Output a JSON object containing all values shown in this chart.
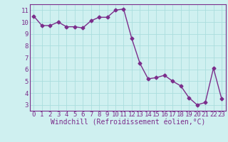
{
  "x": [
    0,
    1,
    2,
    3,
    4,
    5,
    6,
    7,
    8,
    9,
    10,
    11,
    12,
    13,
    14,
    15,
    16,
    17,
    18,
    19,
    20,
    21,
    22,
    23
  ],
  "y": [
    10.5,
    9.7,
    9.7,
    10.0,
    9.6,
    9.6,
    9.5,
    10.1,
    10.4,
    10.4,
    11.0,
    11.1,
    8.6,
    6.5,
    5.2,
    5.3,
    5.5,
    5.0,
    4.6,
    3.6,
    3.0,
    3.2,
    6.1,
    3.5
  ],
  "ylim": [
    2.5,
    11.5
  ],
  "xlim": [
    -0.5,
    23.5
  ],
  "yticks": [
    3,
    4,
    5,
    6,
    7,
    8,
    9,
    10,
    11
  ],
  "xticks": [
    0,
    1,
    2,
    3,
    4,
    5,
    6,
    7,
    8,
    9,
    10,
    11,
    12,
    13,
    14,
    15,
    16,
    17,
    18,
    19,
    20,
    21,
    22,
    23
  ],
  "xlabel": "Windchill (Refroidissement éolien,°C)",
  "line_color": "#7b2d8b",
  "bg_color": "#cff0f0",
  "grid_color": "#aadddd",
  "marker": "D",
  "marker_size": 2.5,
  "line_width": 1.0,
  "xlabel_fontsize": 7.0,
  "tick_fontsize": 6.5
}
